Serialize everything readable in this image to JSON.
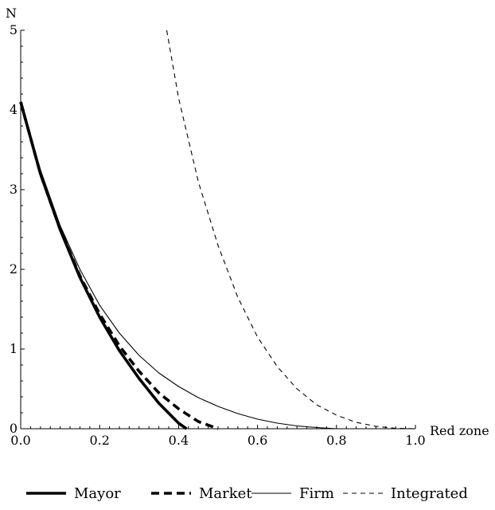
{
  "chart_data": {
    "type": "line",
    "xlabel": "Red zone",
    "ylabel": "N",
    "xlim": [
      0.0,
      1.0
    ],
    "ylim": [
      0,
      5
    ],
    "x_ticks": [
      "0.0",
      "0.2",
      "0.4",
      "0.6",
      "0.8",
      "1.0"
    ],
    "y_ticks": [
      "0",
      "1",
      "2",
      "3",
      "4",
      "5"
    ],
    "grid": false,
    "legend_position": "bottom",
    "series": [
      {
        "name": "Mayor",
        "style": "thick-solid",
        "points": [
          [
            0.0,
            4.1
          ],
          [
            0.05,
            3.2
          ],
          [
            0.1,
            2.5
          ],
          [
            0.15,
            1.9
          ],
          [
            0.2,
            1.4
          ],
          [
            0.25,
            0.98
          ],
          [
            0.3,
            0.63
          ],
          [
            0.35,
            0.32
          ],
          [
            0.4,
            0.07
          ],
          [
            0.42,
            0.0
          ]
        ]
      },
      {
        "name": "Market",
        "style": "thick-dashed",
        "points": [
          [
            0.0,
            4.1
          ],
          [
            0.05,
            3.2
          ],
          [
            0.1,
            2.5
          ],
          [
            0.15,
            1.92
          ],
          [
            0.2,
            1.44
          ],
          [
            0.25,
            1.04
          ],
          [
            0.3,
            0.72
          ],
          [
            0.35,
            0.45
          ],
          [
            0.4,
            0.25
          ],
          [
            0.45,
            0.09
          ],
          [
            0.5,
            0.0
          ]
        ]
      },
      {
        "name": "Firm",
        "style": "thin-solid",
        "points": [
          [
            0.0,
            4.1
          ],
          [
            0.05,
            3.25
          ],
          [
            0.1,
            2.55
          ],
          [
            0.15,
            2.0
          ],
          [
            0.2,
            1.55
          ],
          [
            0.25,
            1.2
          ],
          [
            0.3,
            0.92
          ],
          [
            0.35,
            0.7
          ],
          [
            0.4,
            0.53
          ],
          [
            0.45,
            0.39
          ],
          [
            0.5,
            0.28
          ],
          [
            0.55,
            0.19
          ],
          [
            0.6,
            0.12
          ],
          [
            0.65,
            0.07
          ],
          [
            0.7,
            0.035
          ],
          [
            0.75,
            0.015
          ],
          [
            0.8,
            0.0
          ],
          [
            0.85,
            0.0
          ],
          [
            0.95,
            0.0
          ]
        ]
      },
      {
        "name": "Integrated",
        "style": "thin-dashed",
        "points": [
          [
            0.37,
            5.0
          ],
          [
            0.4,
            4.15
          ],
          [
            0.45,
            3.1
          ],
          [
            0.5,
            2.3
          ],
          [
            0.55,
            1.65
          ],
          [
            0.6,
            1.15
          ],
          [
            0.65,
            0.78
          ],
          [
            0.7,
            0.5
          ],
          [
            0.75,
            0.3
          ],
          [
            0.8,
            0.17
          ],
          [
            0.85,
            0.08
          ],
          [
            0.9,
            0.03
          ],
          [
            0.95,
            0.005
          ],
          [
            1.0,
            0.0
          ]
        ]
      }
    ]
  }
}
